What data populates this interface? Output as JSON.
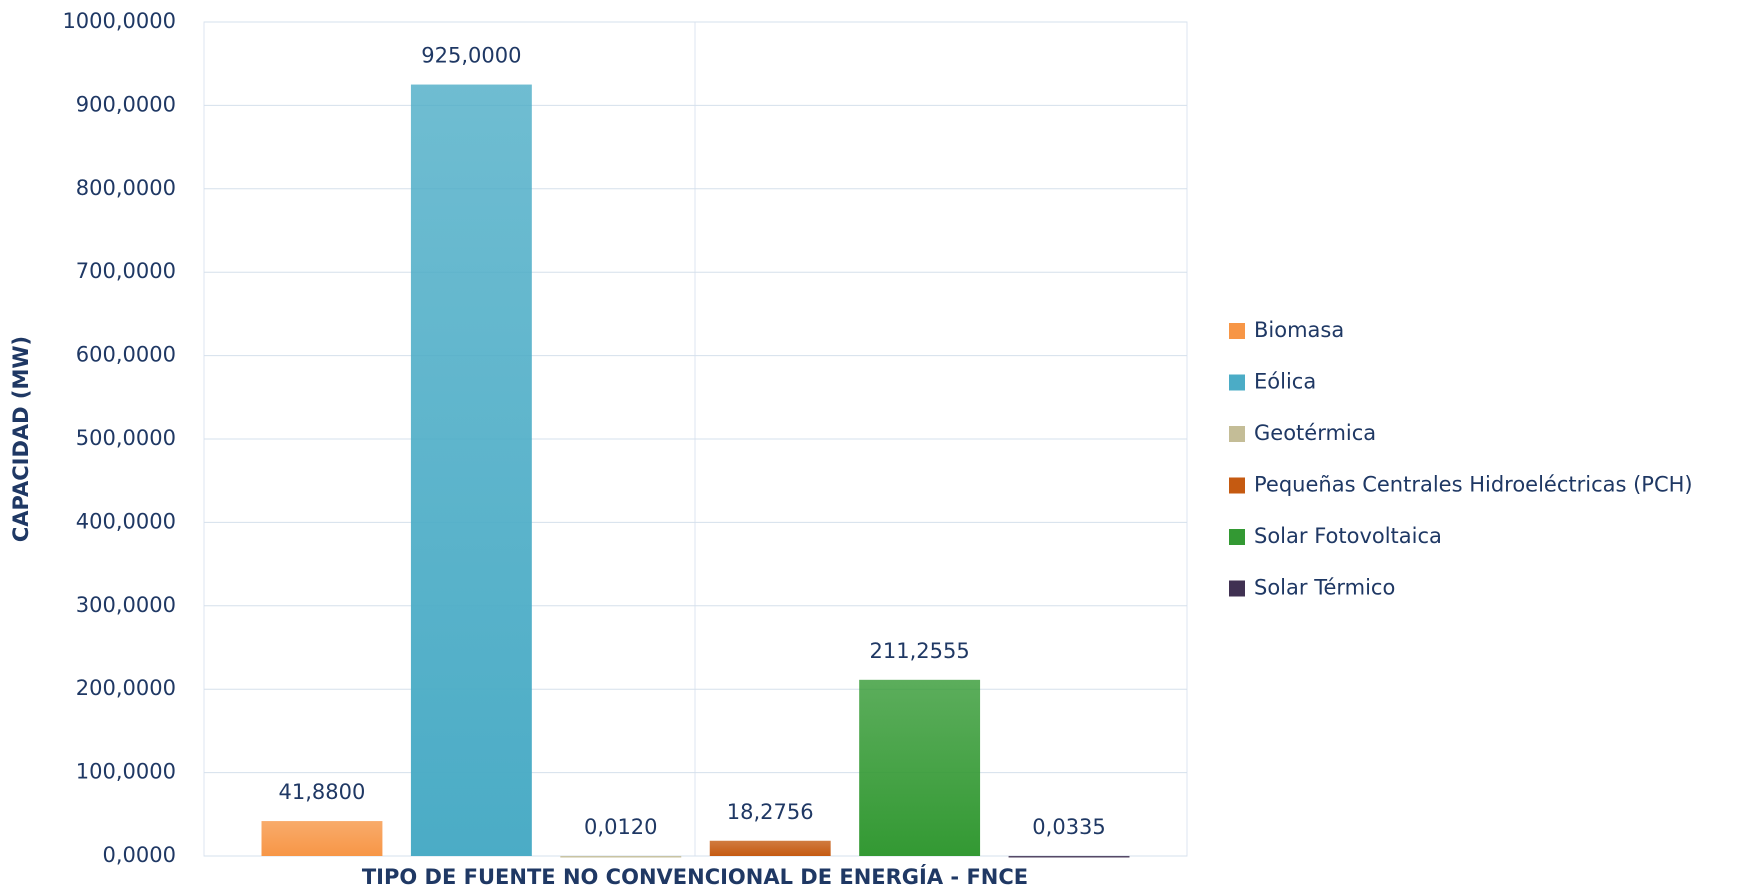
{
  "chart_data": {
    "type": "bar",
    "categories": [
      null
    ],
    "x_label": "TIPO DE FUENTE NO CONVENCIONAL DE ENERGÍA - FNCE",
    "y_label": "CAPACIDAD (MW)",
    "series": [
      {
        "name": "Biomasa",
        "color": "#f79646",
        "values": [
          41.88
        ],
        "value_labels": [
          "41,8800"
        ]
      },
      {
        "name": "Eólica",
        "color": "#4bacc6",
        "values": [
          925
        ],
        "value_labels": [
          "925,0000"
        ]
      },
      {
        "name": "Geotérmica",
        "color": "#c4bd97",
        "values": [
          0.012
        ],
        "value_labels": [
          "0,0120"
        ]
      },
      {
        "name": "Pequeñas Centrales Hidroeléctricas (PCH)",
        "color": "#c55a11",
        "values": [
          18.2756
        ],
        "value_labels": [
          "18,2756"
        ]
      },
      {
        "name": "Solar Fotovoltaica",
        "color": "#339933",
        "values": [
          211.2555
        ],
        "value_labels": [
          "211,2555"
        ]
      },
      {
        "name": "Solar Térmico",
        "color": "#403152",
        "values": [
          0.0335
        ],
        "value_labels": [
          "0,0335"
        ]
      }
    ],
    "ylim": [
      0,
      1000
    ],
    "yticks": [
      {
        "value": 0,
        "label": "0,0000"
      },
      {
        "value": 100,
        "label": "100,0000"
      },
      {
        "value": 200,
        "label": "200,0000"
      },
      {
        "value": 300,
        "label": "300,0000"
      },
      {
        "value": 400,
        "label": "400,0000"
      },
      {
        "value": 500,
        "label": "500,0000"
      },
      {
        "value": 600,
        "label": "600,0000"
      },
      {
        "value": 700,
        "label": "700,0000"
      },
      {
        "value": 800,
        "label": "800,0000"
      },
      {
        "value": 900,
        "label": "900,0000"
      },
      {
        "value": 1000,
        "label": "1000,0000"
      }
    ],
    "grid": true,
    "legend": "right"
  }
}
